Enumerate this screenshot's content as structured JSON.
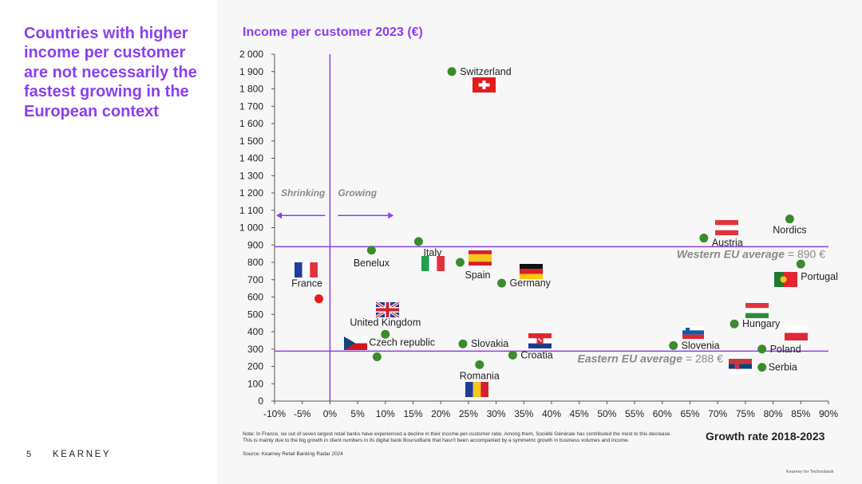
{
  "headline": "Countries with higher income per customer are not necessarily the fastest growing in the European context",
  "page_number": "5",
  "brand": "KEARNEY",
  "footer": "Kearney for Technobank",
  "note": "Note: In France, six out of seven largest retail banks have experienced a decline in their income-per-customer ratio. Among them, Société Générale has contributed the most to this decrease. This is mainly due to the big growth in client numbers in its digital bank BoursoBank that hasn't been accompanied by a symmetric growth in business volumes and income.",
  "source": "Source: Kearney Retail Banking Radar 2024",
  "chart_data": {
    "type": "scatter",
    "title": "Income per customer 2023 (€)",
    "xlabel": "Growth rate 2018-2023",
    "ylabel": "",
    "xlim": [
      -10,
      90
    ],
    "ylim": [
      0,
      2000
    ],
    "x_ticks": [
      -10,
      -5,
      0,
      5,
      10,
      15,
      20,
      25,
      30,
      35,
      40,
      45,
      50,
      55,
      60,
      65,
      70,
      75,
      80,
      85,
      90
    ],
    "x_tick_labels": [
      "-10%",
      "-5%",
      "0%",
      "5%",
      "10%",
      "15%",
      "20%",
      "25%",
      "30%",
      "35%",
      "40%",
      "45%",
      "50%",
      "55%",
      "60%",
      "65%",
      "70%",
      "75%",
      "80%",
      "85%",
      "90%"
    ],
    "y_ticks": [
      0,
      100,
      200,
      300,
      400,
      500,
      600,
      700,
      800,
      900,
      1000,
      1100,
      1200,
      1300,
      1400,
      1500,
      1600,
      1700,
      1800,
      1900,
      2000
    ],
    "y_tick_labels": [
      "0",
      "100",
      "200",
      "300",
      "400",
      "500",
      "600",
      "700",
      "800",
      "900",
      "1 000",
      "1 100",
      "1 200",
      "1 300",
      "1 400",
      "1 500",
      "1 600",
      "1 700",
      "1 800",
      "1 900",
      "2 000"
    ],
    "grid": false,
    "points": [
      {
        "label": "Switzerland",
        "x": 22,
        "y": 1900,
        "color": "#3a8c2a"
      },
      {
        "label": "Nordics",
        "x": 83,
        "y": 1050,
        "color": "#3a8c2a"
      },
      {
        "label": "Austria",
        "x": 67.5,
        "y": 940,
        "color": "#3a8c2a"
      },
      {
        "label": "Italy",
        "x": 16,
        "y": 920,
        "color": "#3a8c2a"
      },
      {
        "label": "Benelux",
        "x": 7.5,
        "y": 870,
        "color": "#3a8c2a"
      },
      {
        "label": "Spain",
        "x": 23.5,
        "y": 800,
        "color": "#3a8c2a"
      },
      {
        "label": "Portugal",
        "x": 85,
        "y": 790,
        "color": "#3a8c2a"
      },
      {
        "label": "Germany",
        "x": 31,
        "y": 680,
        "color": "#3a8c2a"
      },
      {
        "label": "France",
        "x": -2,
        "y": 590,
        "color": "#ee1c1c"
      },
      {
        "label": "Hungary",
        "x": 73,
        "y": 445,
        "color": "#3a8c2a"
      },
      {
        "label": "United Kingdom",
        "x": 10,
        "y": 385,
        "color": "#3a8c2a"
      },
      {
        "label": "Slovakia",
        "x": 24,
        "y": 330,
        "color": "#3a8c2a"
      },
      {
        "label": "Slovenia",
        "x": 62,
        "y": 320,
        "color": "#3a8c2a"
      },
      {
        "label": "Poland",
        "x": 78,
        "y": 300,
        "color": "#3a8c2a"
      },
      {
        "label": "Croatia",
        "x": 33,
        "y": 265,
        "color": "#3a8c2a"
      },
      {
        "label": "Czech republic",
        "x": 8.5,
        "y": 255,
        "color": "#3a8c2a"
      },
      {
        "label": "Romania",
        "x": 27,
        "y": 210,
        "color": "#3a8c2a"
      },
      {
        "label": "Serbia",
        "x": 78,
        "y": 195,
        "color": "#3a8c2a"
      }
    ],
    "reference_lines": [
      {
        "label": "Western EU average",
        "value_text": "= 890 €",
        "y": 890
      },
      {
        "label": "Eastern EU average",
        "value_text": "= 288 €",
        "y": 288
      }
    ],
    "vertical_line_x": 0,
    "annotations": {
      "left": "Shrinking",
      "right": "Growing"
    },
    "accent_color": "#8a3ff0"
  }
}
